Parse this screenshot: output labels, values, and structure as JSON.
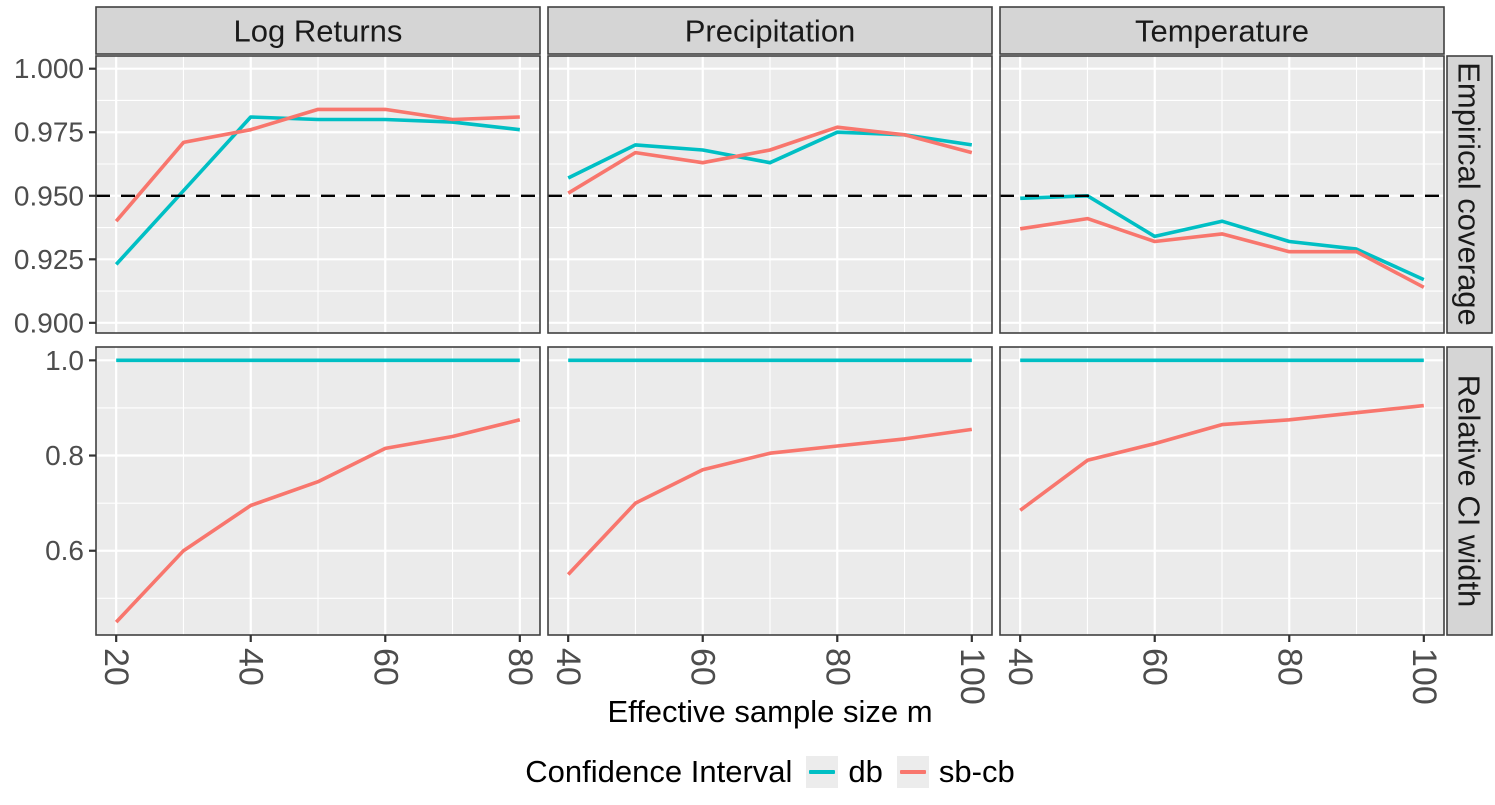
{
  "chart_data": {
    "type": "line",
    "title": "",
    "xlabel": "Effective sample size m",
    "ylabel": "",
    "grid": true,
    "legend": {
      "title": "Confidence Interval",
      "position": "bottom",
      "entries": [
        "db",
        "sb-cb"
      ]
    },
    "series_colors": {
      "db": "#00BFC4",
      "sb-cb": "#F8766D"
    },
    "panel_bg": "#EBEBEB",
    "strip_bg": "#D5D5D5",
    "grid_color": "#FFFFFF",
    "border_color": "#404040",
    "tick_color": "#333333",
    "tick_text_color": "#4D4D4D",
    "strip_text_color": "#1A1A1A",
    "facet_columns": [
      "Log Returns",
      "Precipitation",
      "Temperature"
    ],
    "facet_rows": [
      "Empirical coverage",
      "Relative CI width"
    ],
    "reference_line": {
      "y": 0.95,
      "rows": [
        0
      ],
      "color": "#000000",
      "style": "dashed"
    },
    "col_scales": [
      {
        "xlim": [
          17,
          83
        ],
        "ticks": [
          20,
          40,
          60,
          80
        ],
        "tick_labels": [
          "20",
          "40",
          "60",
          "80"
        ],
        "minor": [
          30,
          50,
          70
        ]
      },
      {
        "xlim": [
          37,
          103
        ],
        "ticks": [
          40,
          60,
          80,
          100
        ],
        "tick_labels": [
          "40",
          "60",
          "80",
          "100"
        ],
        "minor": [
          50,
          70,
          90
        ]
      },
      {
        "xlim": [
          37,
          103
        ],
        "ticks": [
          40,
          60,
          80,
          100
        ],
        "tick_labels": [
          "40",
          "60",
          "80",
          "100"
        ],
        "minor": [
          50,
          70,
          90
        ]
      }
    ],
    "row_scales": [
      {
        "ylim": [
          0.896,
          1.005
        ],
        "ticks": [
          1.0,
          0.975,
          0.95,
          0.925,
          0.9
        ],
        "tick_labels": [
          "1.000",
          "0.975",
          "0.950",
          "0.925",
          "0.900"
        ],
        "minor": [
          0.9125,
          0.9375,
          0.9625,
          0.9875
        ]
      },
      {
        "ylim": [
          0.423,
          1.028
        ],
        "ticks": [
          1.0,
          0.8,
          0.6
        ],
        "tick_labels": [
          "1.0",
          "0.8",
          "0.6"
        ],
        "minor": [
          0.5,
          0.7,
          0.9
        ]
      }
    ],
    "panels": [
      {
        "row": "Empirical coverage",
        "col": "Log Returns",
        "x": [
          20,
          30,
          40,
          50,
          60,
          70,
          80
        ],
        "series": [
          {
            "name": "db",
            "values": [
              0.923,
              0.952,
              0.981,
              0.98,
              0.98,
              0.979,
              0.976
            ]
          },
          {
            "name": "sb-cb",
            "values": [
              0.94,
              0.971,
              0.976,
              0.984,
              0.984,
              0.98,
              0.981
            ]
          }
        ]
      },
      {
        "row": "Empirical coverage",
        "col": "Precipitation",
        "x": [
          40,
          50,
          60,
          70,
          80,
          90,
          100
        ],
        "series": [
          {
            "name": "db",
            "values": [
              0.957,
              0.97,
              0.968,
              0.963,
              0.975,
              0.974,
              0.97
            ]
          },
          {
            "name": "sb-cb",
            "values": [
              0.951,
              0.967,
              0.963,
              0.968,
              0.977,
              0.974,
              0.967
            ]
          }
        ]
      },
      {
        "row": "Empirical coverage",
        "col": "Temperature",
        "x": [
          40,
          50,
          60,
          70,
          80,
          90,
          100
        ],
        "series": [
          {
            "name": "db",
            "values": [
              0.949,
              0.95,
              0.934,
              0.94,
              0.932,
              0.929,
              0.917
            ]
          },
          {
            "name": "sb-cb",
            "values": [
              0.937,
              0.941,
              0.932,
              0.935,
              0.928,
              0.928,
              0.914
            ]
          }
        ]
      },
      {
        "row": "Relative CI width",
        "col": "Log Returns",
        "x": [
          20,
          30,
          40,
          50,
          60,
          70,
          80
        ],
        "series": [
          {
            "name": "db",
            "values": [
              1.0,
              1.0,
              1.0,
              1.0,
              1.0,
              1.0,
              1.0
            ]
          },
          {
            "name": "sb-cb",
            "values": [
              0.45,
              0.6,
              0.695,
              0.745,
              0.815,
              0.84,
              0.875
            ]
          }
        ]
      },
      {
        "row": "Relative CI width",
        "col": "Precipitation",
        "x": [
          40,
          50,
          60,
          70,
          80,
          90,
          100
        ],
        "series": [
          {
            "name": "db",
            "values": [
              1.0,
              1.0,
              1.0,
              1.0,
              1.0,
              1.0,
              1.0
            ]
          },
          {
            "name": "sb-cb",
            "values": [
              0.55,
              0.7,
              0.77,
              0.805,
              0.82,
              0.835,
              0.855
            ]
          }
        ]
      },
      {
        "row": "Relative CI width",
        "col": "Temperature",
        "x": [
          40,
          50,
          60,
          70,
          80,
          90,
          100
        ],
        "series": [
          {
            "name": "db",
            "values": [
              1.0,
              1.0,
              1.0,
              1.0,
              1.0,
              1.0,
              1.0
            ]
          },
          {
            "name": "sb-cb",
            "values": [
              0.685,
              0.79,
              0.825,
              0.865,
              0.875,
              0.89,
              0.905
            ]
          }
        ]
      }
    ]
  }
}
